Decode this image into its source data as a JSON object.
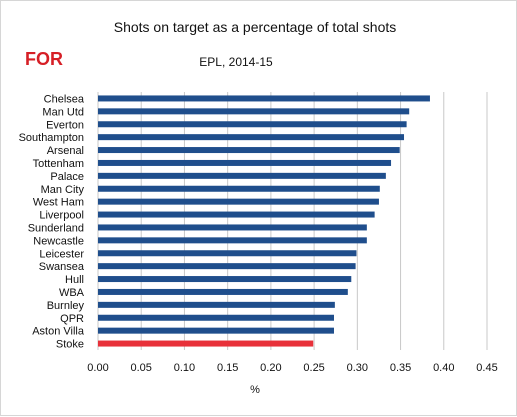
{
  "chart_data": {
    "type": "bar",
    "orientation": "horizontal",
    "title": "Shots on target as a percentage of total shots",
    "subtitle": "EPL, 2014-15",
    "tag": "FOR",
    "xlabel": "%",
    "ylabel": "",
    "xlim": [
      0,
      0.45
    ],
    "xticks": [
      "0.00",
      "0.05",
      "0.10",
      "0.15",
      "0.20",
      "0.25",
      "0.30",
      "0.35",
      "0.40",
      "0.45"
    ],
    "grid": "vertical",
    "categories": [
      "Chelsea",
      "Man Utd",
      "Everton",
      "Southampton",
      "Arsenal",
      "Tottenham",
      "Palace",
      "Man City",
      "West Ham",
      "Liverpool",
      "Sunderland",
      "Newcastle",
      "Leicester",
      "Swansea",
      "Hull",
      "WBA",
      "Burnley",
      "QPR",
      "Aston Villa",
      "Stoke"
    ],
    "values": [
      0.384,
      0.36,
      0.357,
      0.354,
      0.349,
      0.339,
      0.333,
      0.326,
      0.325,
      0.32,
      0.311,
      0.311,
      0.299,
      0.298,
      0.293,
      0.289,
      0.274,
      0.273,
      0.273,
      0.249
    ],
    "colors": {
      "default_bar": "#1f4e8c",
      "highlight_bar": "#e8313a",
      "grid": "#c8c8c8",
      "tag": "#d61f26"
    },
    "highlight": "Stoke"
  }
}
